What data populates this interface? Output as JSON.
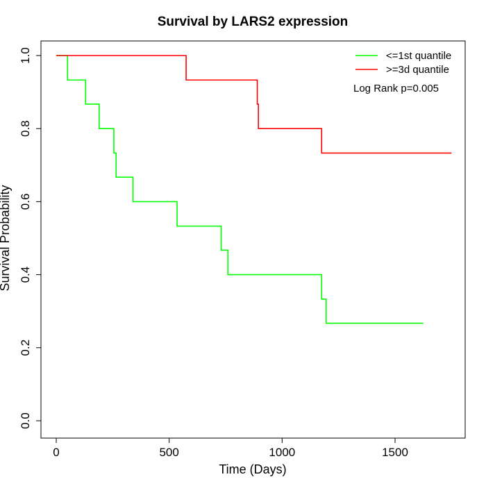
{
  "chart_data": {
    "type": "line",
    "title": "Survival by LARS2 expression",
    "xlabel": "Time (Days)",
    "ylabel": "Survival Probability",
    "xlim": [
      0,
      1800
    ],
    "ylim": [
      0,
      1.0
    ],
    "x_ticks": [
      0,
      500,
      1000,
      1500
    ],
    "x_tick_labels": [
      "0",
      "500",
      "1000",
      "1500"
    ],
    "y_ticks": [
      0.0,
      0.2,
      0.4,
      0.6,
      0.8,
      1.0
    ],
    "y_tick_labels": [
      "0.0",
      "0.2",
      "0.4",
      "0.6",
      "0.8",
      "1.0"
    ],
    "grid": false,
    "legend_position": "top-right",
    "annotation": "Log Rank p=0.005",
    "series": [
      {
        "name": "<=1st quantile",
        "color": "#00ff00",
        "x": [
          0,
          50,
          130,
          190,
          255,
          265,
          340,
          535,
          730,
          760,
          1175,
          1195,
          1625
        ],
        "y": [
          1.0,
          0.933,
          0.867,
          0.8,
          0.733,
          0.667,
          0.6,
          0.533,
          0.467,
          0.4,
          0.333,
          0.267,
          0.267
        ]
      },
      {
        "name": ">=3d quantile",
        "color": "#ff0000",
        "x": [
          0,
          575,
          890,
          895,
          1175,
          1750
        ],
        "y": [
          1.0,
          0.933,
          0.867,
          0.8,
          0.733,
          0.733
        ]
      }
    ]
  }
}
